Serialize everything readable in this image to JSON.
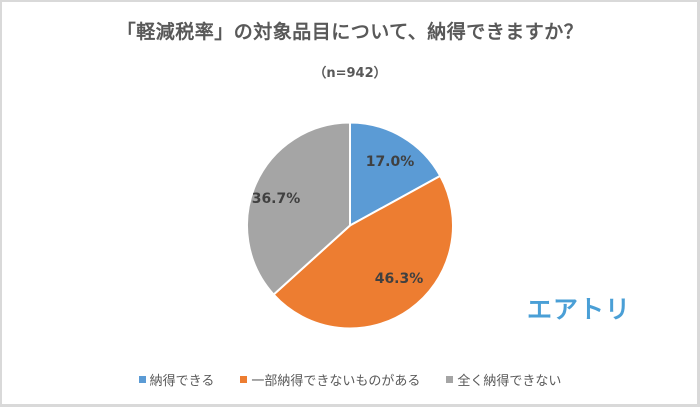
{
  "chart_data": {
    "type": "pie",
    "title": "「軽減税率」の対象品目について、納得できますか？",
    "subtitle": "（n=942）",
    "categories": [
      "納得できる",
      "一部納得できないものがある",
      "全く納得できない"
    ],
    "values": [
      17.0,
      46.3,
      36.7
    ],
    "value_labels": [
      "17.0%",
      "46.3%",
      "36.7%"
    ],
    "colors": [
      "#5B9BD5",
      "#ED7D31",
      "#A5A5A5"
    ],
    "start_angle": "12 o'clock",
    "direction": "clockwise",
    "legend_position": "bottom",
    "sample_size": 942
  },
  "header": {
    "title": "「軽減税率」の対象品目について、納得できますか？",
    "subtitle": "（n=942）"
  },
  "labels": {
    "slice0": "17.0%",
    "slice1": "46.3%",
    "slice2": "36.7%"
  },
  "legend": {
    "items": [
      {
        "label": "納得できる",
        "color": "#5B9BD5"
      },
      {
        "label": "一部納得できないものがある",
        "color": "#ED7D31"
      },
      {
        "label": "全く納得できない",
        "color": "#A5A5A5"
      }
    ]
  },
  "brand": {
    "logo_text": "エアトリ",
    "color": "#4A9FD6"
  }
}
